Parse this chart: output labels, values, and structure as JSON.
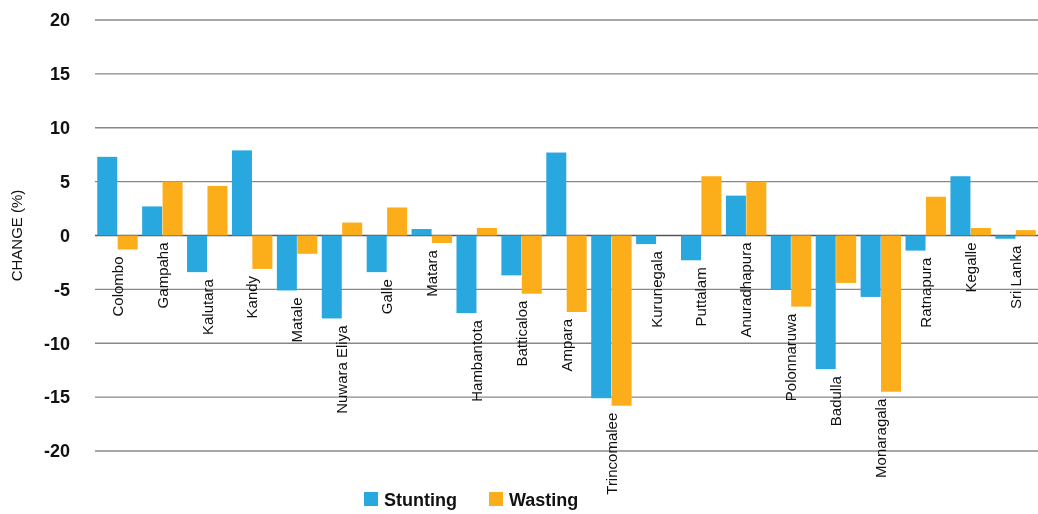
{
  "chart_data": {
    "type": "bar",
    "ylabel": "CHANGE (%)",
    "categories": [
      "Colombo",
      "Gampaha",
      "Kalutara",
      "Kandy",
      "Matale",
      "Nuwara Eliya",
      "Galle",
      "Matara",
      "Hambantota",
      "Batticaloa",
      "Ampara",
      "Trincomalee",
      "Kurunegala",
      "Puttalam",
      "Anuradhapura",
      "Polonnaruwa",
      "Badulla",
      "Monaragala",
      "Ratnapura",
      "Kegalle",
      "Sri Lanka"
    ],
    "series": [
      {
        "name": "Stunting",
        "color": "#29a8e0",
        "values": [
          7.3,
          2.7,
          -3.4,
          7.9,
          -5.1,
          -7.7,
          -3.4,
          0.6,
          -7.2,
          -3.7,
          7.7,
          -15.1,
          -0.8,
          -2.3,
          3.7,
          -5.0,
          -12.4,
          -5.7,
          -1.4,
          5.5,
          -0.3
        ]
      },
      {
        "name": "Wasting",
        "color": "#fbae1a",
        "values": [
          -1.3,
          5.0,
          4.6,
          -3.1,
          -1.7,
          1.2,
          2.6,
          -0.7,
          0.7,
          -5.4,
          -7.1,
          -15.8,
          null,
          5.5,
          5.0,
          -6.6,
          -4.4,
          -14.5,
          3.6,
          0.7,
          0.5
        ]
      }
    ],
    "ylim": [
      -20,
      20
    ],
    "yticks": [
      -20,
      -15,
      -10,
      -5,
      0,
      5,
      10,
      15,
      20
    ],
    "grid": "y",
    "legend": "bottom"
  }
}
